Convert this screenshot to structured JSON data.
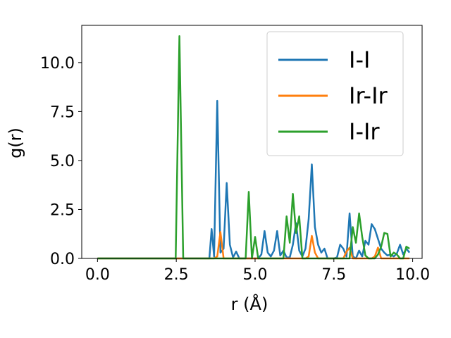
{
  "chart_data": {
    "type": "line",
    "xlabel": "r (Å)",
    "ylabel": "g(r)",
    "xlim": [
      -0.5,
      10.3
    ],
    "ylim": [
      0,
      11.9
    ],
    "xticks": [
      0.0,
      2.5,
      5.0,
      7.5,
      10.0
    ],
    "xtick_labels": [
      "0.0",
      "2.5",
      "5.0",
      "7.5",
      "10.0"
    ],
    "yticks": [
      0.0,
      2.5,
      5.0,
      7.5,
      10.0
    ],
    "ytick_labels": [
      "0.0",
      "2.5",
      "5.0",
      "7.5",
      "10.0"
    ],
    "grid": false,
    "legend_position": "top-right",
    "series": [
      {
        "name": "I-I",
        "color": "#1f77b4",
        "x": [
          0.0,
          3.45,
          3.55,
          3.62,
          3.7,
          3.8,
          3.9,
          4.0,
          4.1,
          4.2,
          4.3,
          4.4,
          4.5,
          4.6,
          4.8,
          5.0,
          5.1,
          5.2,
          5.3,
          5.4,
          5.5,
          5.6,
          5.7,
          5.8,
          5.9,
          6.0,
          6.1,
          6.2,
          6.3,
          6.4,
          6.5,
          6.6,
          6.7,
          6.8,
          6.9,
          7.0,
          7.1,
          7.2,
          7.3,
          7.5,
          7.6,
          7.7,
          7.8,
          7.9,
          8.0,
          8.1,
          8.2,
          8.3,
          8.4,
          8.5,
          8.6,
          8.7,
          8.8,
          8.9,
          9.0,
          9.1,
          9.2,
          9.3,
          9.4,
          9.5,
          9.6,
          9.7,
          9.8,
          9.9
        ],
        "values": [
          0,
          0,
          0,
          1.5,
          0.1,
          8.05,
          0.3,
          0.5,
          3.85,
          0.7,
          0.05,
          0.35,
          0,
          0,
          0,
          0,
          0,
          0.2,
          1.4,
          0.3,
          0.1,
          0.4,
          1.4,
          0.15,
          0.4,
          0.05,
          0.05,
          0.7,
          1.8,
          0.4,
          0.1,
          0.5,
          2.0,
          4.8,
          1.6,
          0.7,
          0.3,
          0.5,
          0,
          0,
          0.05,
          0.7,
          0.5,
          0.1,
          2.3,
          0.1,
          0,
          0.4,
          0.1,
          0.9,
          0.7,
          1.75,
          1.5,
          1.0,
          0.5,
          0.3,
          0.15,
          0.2,
          0.1,
          0.25,
          0.7,
          0.2,
          0.5,
          0.3
        ]
      },
      {
        "name": "Ir-Ir",
        "color": "#ff7f0e",
        "x": [
          0.0,
          3.7,
          3.8,
          3.9,
          4.0,
          6.6,
          6.7,
          6.8,
          6.9,
          7.0,
          7.8,
          7.9,
          8.0,
          8.1,
          8.7,
          8.8,
          8.9,
          9.0,
          9.9
        ],
        "values": [
          0,
          0,
          0.1,
          1.35,
          0,
          0,
          0.1,
          1.15,
          0.3,
          0,
          0,
          0.35,
          0.55,
          0,
          0,
          0.1,
          0.55,
          0,
          0
        ]
      },
      {
        "name": "I-Ir",
        "color": "#2ca02c",
        "x": [
          0.0,
          2.48,
          2.6,
          2.72,
          4.7,
          4.8,
          4.9,
          5.0,
          5.1,
          5.9,
          6.0,
          6.1,
          6.2,
          6.3,
          6.4,
          6.5,
          7.9,
          8.0,
          8.1,
          8.2,
          8.3,
          8.4,
          8.5,
          8.6,
          8.7,
          8.8,
          8.9,
          9.0,
          9.1,
          9.2,
          9.3,
          9.4,
          9.5,
          9.6,
          9.7,
          9.8,
          9.9
        ],
        "values": [
          0,
          0,
          11.35,
          0,
          0,
          3.4,
          0,
          1.1,
          0,
          0,
          2.15,
          0.8,
          3.3,
          1.3,
          2.15,
          0,
          0,
          0,
          1.6,
          0.8,
          2.3,
          1.1,
          0.15,
          0,
          0,
          0,
          0.2,
          0.6,
          1.3,
          1.25,
          0.1,
          0.3,
          0.2,
          0,
          0,
          0.6,
          0.5
        ]
      }
    ]
  }
}
